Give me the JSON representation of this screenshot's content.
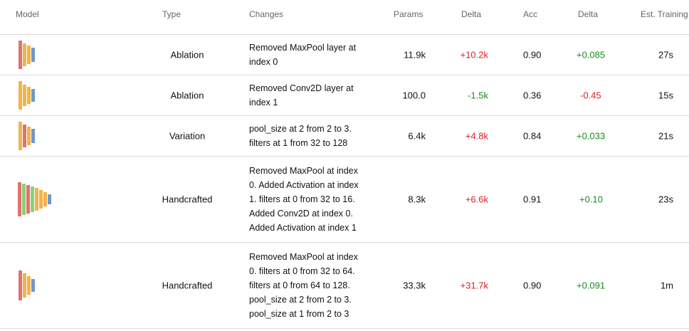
{
  "headers": {
    "model": "Model",
    "type": "Type",
    "changes": "Changes",
    "params": "Params",
    "delta1": "Delta",
    "acc": "Acc",
    "delta2": "Delta",
    "training": "Est. Training"
  },
  "rows": [
    {
      "type": "Ablation",
      "changes": "Removed MaxPool layer at index 0",
      "params": "11.9k",
      "param_delta": "+10.2k",
      "acc": "0.90",
      "acc_delta": "+0.085",
      "time": "27s"
    },
    {
      "type": "Ablation",
      "changes": "Removed Conv2D layer at index 1",
      "params": "100.0",
      "param_delta": "-1.5k",
      "acc": "0.36",
      "acc_delta": "-0.45",
      "time": "15s"
    },
    {
      "type": "Variation",
      "changes": "pool_size at 2 from 2 to 3. filters at 1 from 32 to 128",
      "params": "6.4k",
      "param_delta": "+4.8k",
      "acc": "0.84",
      "acc_delta": "+0.033",
      "time": "21s"
    },
    {
      "type": "Handcrafted",
      "changes": "Removed MaxPool at index 0. Added Activation at index 1. filters at 0 from 32 to 16. Added Conv2D at index 0. Added Activation at index 1",
      "params": "8.3k",
      "param_delta": "+6.6k",
      "acc": "0.91",
      "acc_delta": "+0.10",
      "time": "23s"
    },
    {
      "type": "Handcrafted",
      "changes": "Removed MaxPool at index 0. filters at 0 from 32 to 64. filters at 0 from 64 to 128. pool_size at 2 from 2 to 3. pool_size at 1 from 2 to 3",
      "params": "33.3k",
      "param_delta": "+31.7k",
      "acc": "0.90",
      "acc_delta": "+0.091",
      "time": "1m"
    }
  ],
  "colors": {
    "red": "#e02020",
    "green": "#1a8a1a",
    "layer_red": "#e0736b",
    "layer_orange": "#f2b34c",
    "layer_blue": "#6e98cf",
    "layer_green": "#8ccf7a"
  }
}
